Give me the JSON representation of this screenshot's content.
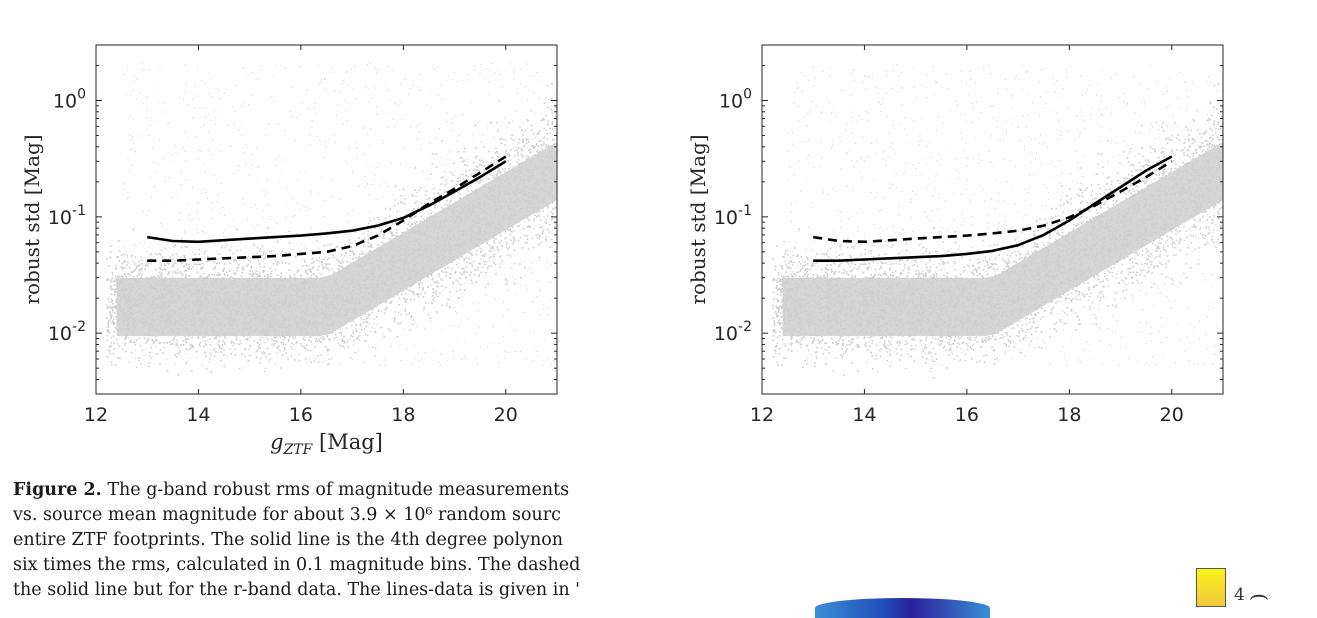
{
  "chart_data": [
    {
      "type": "line",
      "title": "",
      "xlabel": "g_ZTF [Mag]",
      "ylabel": "robust std [Mag]",
      "xlim": [
        12,
        21
      ],
      "ylim": [
        0.003,
        3
      ],
      "yscale": "log",
      "xticks": [
        "12",
        "14",
        "16",
        "18",
        "20"
      ],
      "yticks": [
        "10^0",
        "10^-1",
        "10^-2"
      ],
      "background": "gray scatter of individual sources",
      "series": [
        {
          "style": "solid",
          "x": [
            13,
            13.5,
            14,
            14.5,
            15,
            15.5,
            16,
            16.5,
            17,
            17.5,
            18,
            18.5,
            19,
            19.5,
            20
          ],
          "y": [
            0.067,
            0.062,
            0.061,
            0.063,
            0.065,
            0.067,
            0.069,
            0.072,
            0.076,
            0.084,
            0.098,
            0.125,
            0.165,
            0.22,
            0.3
          ]
        },
        {
          "style": "dashed",
          "x": [
            13,
            13.5,
            14,
            14.5,
            15,
            15.5,
            16,
            16.5,
            17,
            17.5,
            18,
            18.5,
            19,
            19.5,
            20
          ],
          "y": [
            0.042,
            0.042,
            0.043,
            0.044,
            0.045,
            0.046,
            0.048,
            0.05,
            0.056,
            0.069,
            0.093,
            0.13,
            0.175,
            0.24,
            0.33
          ]
        }
      ]
    },
    {
      "type": "line",
      "title": "",
      "xlabel": "",
      "ylabel": "robust std [Mag]",
      "xlim": [
        12,
        21
      ],
      "ylim": [
        0.003,
        3
      ],
      "yscale": "log",
      "xticks": [
        "12",
        "14",
        "16",
        "18",
        "20"
      ],
      "yticks": [
        "10^0",
        "10^-1",
        "10^-2"
      ],
      "background": "gray scatter of individual sources",
      "series": [
        {
          "style": "solid",
          "x": [
            13,
            13.5,
            14,
            14.5,
            15,
            15.5,
            16,
            16.5,
            17,
            17.5,
            18,
            18.5,
            19,
            19.5,
            20
          ],
          "y": [
            0.042,
            0.042,
            0.043,
            0.044,
            0.045,
            0.046,
            0.048,
            0.051,
            0.057,
            0.07,
            0.093,
            0.13,
            0.18,
            0.25,
            0.33
          ]
        },
        {
          "style": "dashed",
          "x": [
            13,
            13.5,
            14,
            14.5,
            15,
            15.5,
            16,
            16.5,
            17,
            17.5,
            18,
            18.5,
            19,
            19.5,
            20
          ],
          "y": [
            0.067,
            0.062,
            0.061,
            0.063,
            0.065,
            0.067,
            0.069,
            0.072,
            0.076,
            0.084,
            0.099,
            0.125,
            0.165,
            0.22,
            0.3
          ]
        }
      ]
    }
  ],
  "caption": {
    "label": "Figure 2.",
    "lines": [
      "The g-band robust rms of magnitude measurements",
      "vs. source mean magnitude for about 3.9 × 10⁶ random sourc",
      "entire ZTF footprints. The solid line is the 4th degree polynon",
      "six times the rms, calculated in 0.1 magnitude bins. The dashed",
      "the solid line but for the r-band data. The lines-data is given in '"
    ]
  },
  "fragments": {
    "colorbar_tick": "4",
    "colorbar_paren": "("
  },
  "colors": {
    "scatter": "#cfcfcf",
    "line": "#000000",
    "axis": "#262626"
  }
}
